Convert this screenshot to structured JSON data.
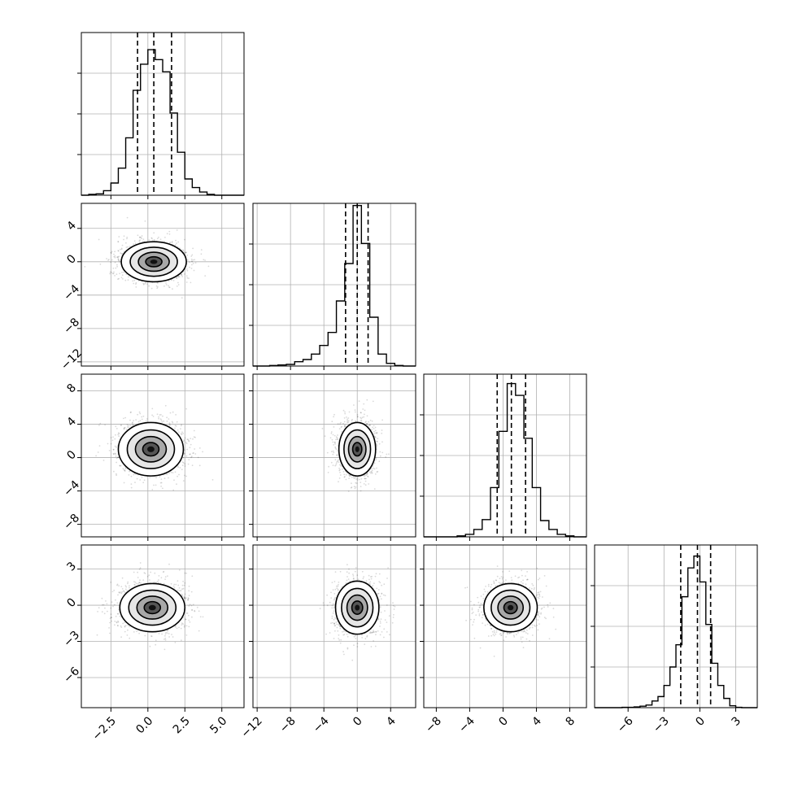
{
  "chart_data": {
    "type": "corner",
    "params": [
      {
        "xticks": [
          "−2.5",
          "0.0",
          "2.5",
          "5.0"
        ],
        "xtick_values": [
          -2.5,
          0.0,
          2.5,
          5.0
        ],
        "xlim": [
          -4.5,
          6.5
        ],
        "hist": {
          "edges": [
            -4.5,
            -4.0,
            -3.5,
            -3.0,
            -2.5,
            -2.0,
            -1.5,
            -1.0,
            -0.5,
            0.0,
            0.5,
            1.0,
            1.5,
            2.0,
            2.5,
            3.0,
            3.5,
            4.0,
            4.5,
            5.0,
            5.5,
            6.0,
            6.5
          ],
          "counts": [
            0,
            2,
            3,
            10,
            27,
            60,
            127,
            232,
            290,
            322,
            300,
            273,
            182,
            95,
            36,
            17,
            7,
            2,
            0,
            0,
            0,
            0
          ],
          "max": 360
        },
        "quantiles": [
          -0.7,
          0.4,
          1.6
        ]
      },
      {
        "yticks": [
          "4",
          "0",
          "−4",
          "−8",
          "−12"
        ],
        "ytick_values": [
          4,
          0,
          -4,
          -8,
          -12
        ],
        "ylim": [
          -12.5,
          7.0
        ],
        "xticks": [
          "−12",
          "−8",
          "−4",
          "0",
          "4"
        ],
        "xtick_values": [
          -12,
          -8,
          -4,
          0,
          4
        ],
        "xlim": [
          -12.5,
          7.0
        ],
        "hist": {
          "edges": [
            -12.5,
            -11.5,
            -10.5,
            -9.5,
            -8.5,
            -7.5,
            -6.5,
            -5.5,
            -4.5,
            -3.5,
            -2.5,
            -1.5,
            -0.5,
            0.5,
            1.5,
            2.5,
            3.5,
            4.5,
            5.5,
            6.5,
            7.0
          ],
          "counts": [
            0,
            0,
            1,
            2,
            3,
            8,
            12,
            22,
            38,
            62,
            120,
            189,
            296,
            226,
            90,
            22,
            5,
            1,
            0,
            0
          ],
          "max": 300
        },
        "quantiles": [
          -1.4,
          0.0,
          1.3
        ]
      },
      {
        "yticks": [
          "8",
          "4",
          "0",
          "−4",
          "−8"
        ],
        "ytick_values": [
          8,
          4,
          0,
          -4,
          -8
        ],
        "ylim": [
          -9.5,
          10.0
        ],
        "xticks": [
          "−8",
          "−4",
          "0",
          "4",
          "8"
        ],
        "xtick_values": [
          -8,
          -4,
          0,
          4,
          8
        ],
        "xlim": [
          -9.5,
          10.0
        ],
        "hist": {
          "edges": [
            -9.5,
            -8.5,
            -7.5,
            -6.5,
            -5.5,
            -4.5,
            -3.5,
            -2.5,
            -1.5,
            -0.5,
            0.5,
            1.5,
            2.5,
            3.5,
            4.5,
            5.5,
            6.5,
            7.5,
            8.5,
            9.5,
            10.0
          ],
          "counts": [
            0,
            0,
            0,
            0,
            2,
            5,
            15,
            35,
            100,
            214,
            311,
            287,
            200,
            100,
            33,
            15,
            5,
            2,
            0,
            0
          ],
          "max": 330
        },
        "quantiles": [
          -0.7,
          1.0,
          2.7
        ]
      },
      {
        "yticks": [
          "3",
          "0",
          "−3",
          "−6"
        ],
        "ytick_values": [
          3,
          0,
          -3,
          -6
        ],
        "ylim": [
          -8.5,
          5.0
        ],
        "xticks": [
          "−6",
          "−3",
          "0",
          "3"
        ],
        "xtick_values": [
          -6,
          -3,
          0,
          3
        ],
        "xlim": [
          -8.8,
          4.8
        ],
        "hist": {
          "edges": [
            -8.8,
            -7.5,
            -7.0,
            -6.5,
            -6.0,
            -5.5,
            -5.0,
            -4.5,
            -4.0,
            -3.5,
            -3.0,
            -2.5,
            -2.0,
            -1.5,
            -1.0,
            -0.5,
            0.0,
            0.5,
            1.0,
            1.5,
            2.0,
            2.5,
            3.0,
            3.5,
            4.0,
            4.8
          ],
          "counts": [
            0,
            0,
            0,
            1,
            1,
            2,
            4,
            7,
            18,
            30,
            60,
            110,
            170,
            300,
            378,
            410,
            340,
            225,
            120,
            60,
            25,
            5,
            1,
            0,
            0
          ],
          "max": 440
        },
        "quantiles": [
          -1.6,
          -0.2,
          0.9
        ]
      }
    ],
    "pairs": [
      {
        "row": 1,
        "col": 0,
        "center": [
          0.4,
          0.0
        ],
        "sd": [
          1.1,
          1.2
        ]
      },
      {
        "row": 2,
        "col": 0,
        "center": [
          0.2,
          1.0
        ],
        "sd": [
          1.1,
          1.6
        ]
      },
      {
        "row": 2,
        "col": 1,
        "center": [
          0.0,
          1.0
        ],
        "sd": [
          1.1,
          1.6
        ]
      },
      {
        "row": 3,
        "col": 0,
        "center": [
          0.3,
          -0.2
        ],
        "sd": [
          1.1,
          1.0
        ]
      },
      {
        "row": 3,
        "col": 1,
        "center": [
          0.0,
          -0.2
        ],
        "sd": [
          1.3,
          1.1
        ]
      },
      {
        "row": 3,
        "col": 2,
        "center": [
          0.9,
          -0.2
        ],
        "sd": [
          1.6,
          1.0
        ]
      }
    ],
    "grid": true
  }
}
